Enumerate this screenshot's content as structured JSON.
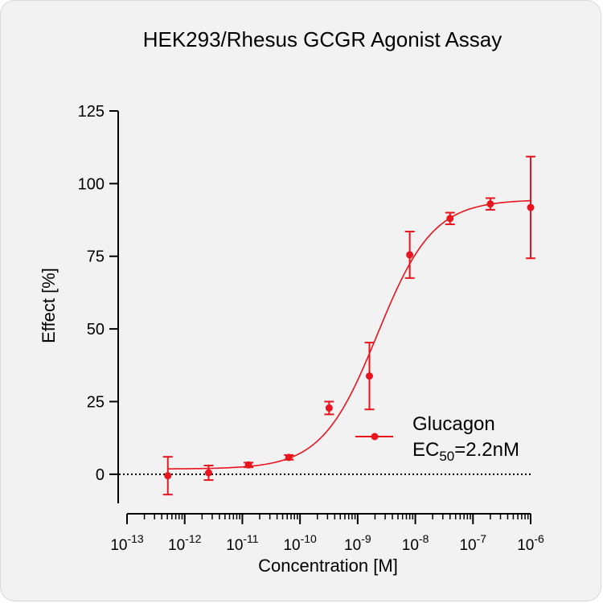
{
  "chart_data": {
    "type": "scatter",
    "title": "HEK293/Rhesus GCGR Agonist Assay",
    "xlabel": "Concentration [M]",
    "ylabel": "Effect  [%]",
    "x_scale": "log",
    "xlim": [
      1e-13,
      1e-06
    ],
    "ylim": [
      -10,
      125
    ],
    "x_ticks": [
      {
        "base": "10",
        "exp": "-13"
      },
      {
        "base": "10",
        "exp": "-12"
      },
      {
        "base": "10",
        "exp": "-11"
      },
      {
        "base": "10",
        "exp": "-10"
      },
      {
        "base": "10",
        "exp": "-9"
      },
      {
        "base": "10",
        "exp": "-8"
      },
      {
        "base": "10",
        "exp": "-7"
      },
      {
        "base": "10",
        "exp": "-6"
      }
    ],
    "y_ticks": [
      "0",
      "25",
      "50",
      "75",
      "100",
      "125"
    ],
    "baseline": 0,
    "series": [
      {
        "name": "Glucagon",
        "color": "#e8141e",
        "points": [
          {
            "x": 5.1e-13,
            "y": -0.5,
            "err": 6.5
          },
          {
            "x": 2.6e-12,
            "y": 0.5,
            "err": 2.5
          },
          {
            "x": 1.28e-11,
            "y": 3.2,
            "err": 0.8
          },
          {
            "x": 6.4e-11,
            "y": 5.8,
            "err": 0.8
          },
          {
            "x": 3.2e-10,
            "y": 22.8,
            "err": 2.2
          },
          {
            "x": 1.6e-09,
            "y": 33.8,
            "err": 11.5
          },
          {
            "x": 8e-09,
            "y": 75.5,
            "err": 8.0
          },
          {
            "x": 4e-08,
            "y": 88.0,
            "err": 2.0
          },
          {
            "x": 2e-07,
            "y": 93.0,
            "err": 2.0
          },
          {
            "x": 1e-06,
            "y": 91.8,
            "err": 17.5
          }
        ],
        "fit": {
          "bottom": 1.8,
          "top": 94.5,
          "ec50": 2.2e-09,
          "hill": 0.9
        }
      }
    ],
    "legend": {
      "position": "lower-right",
      "label": "Glucagon",
      "ec50_prefix": "EC",
      "ec50_sub": "50",
      "ec50_value": "=2.2nM"
    }
  }
}
